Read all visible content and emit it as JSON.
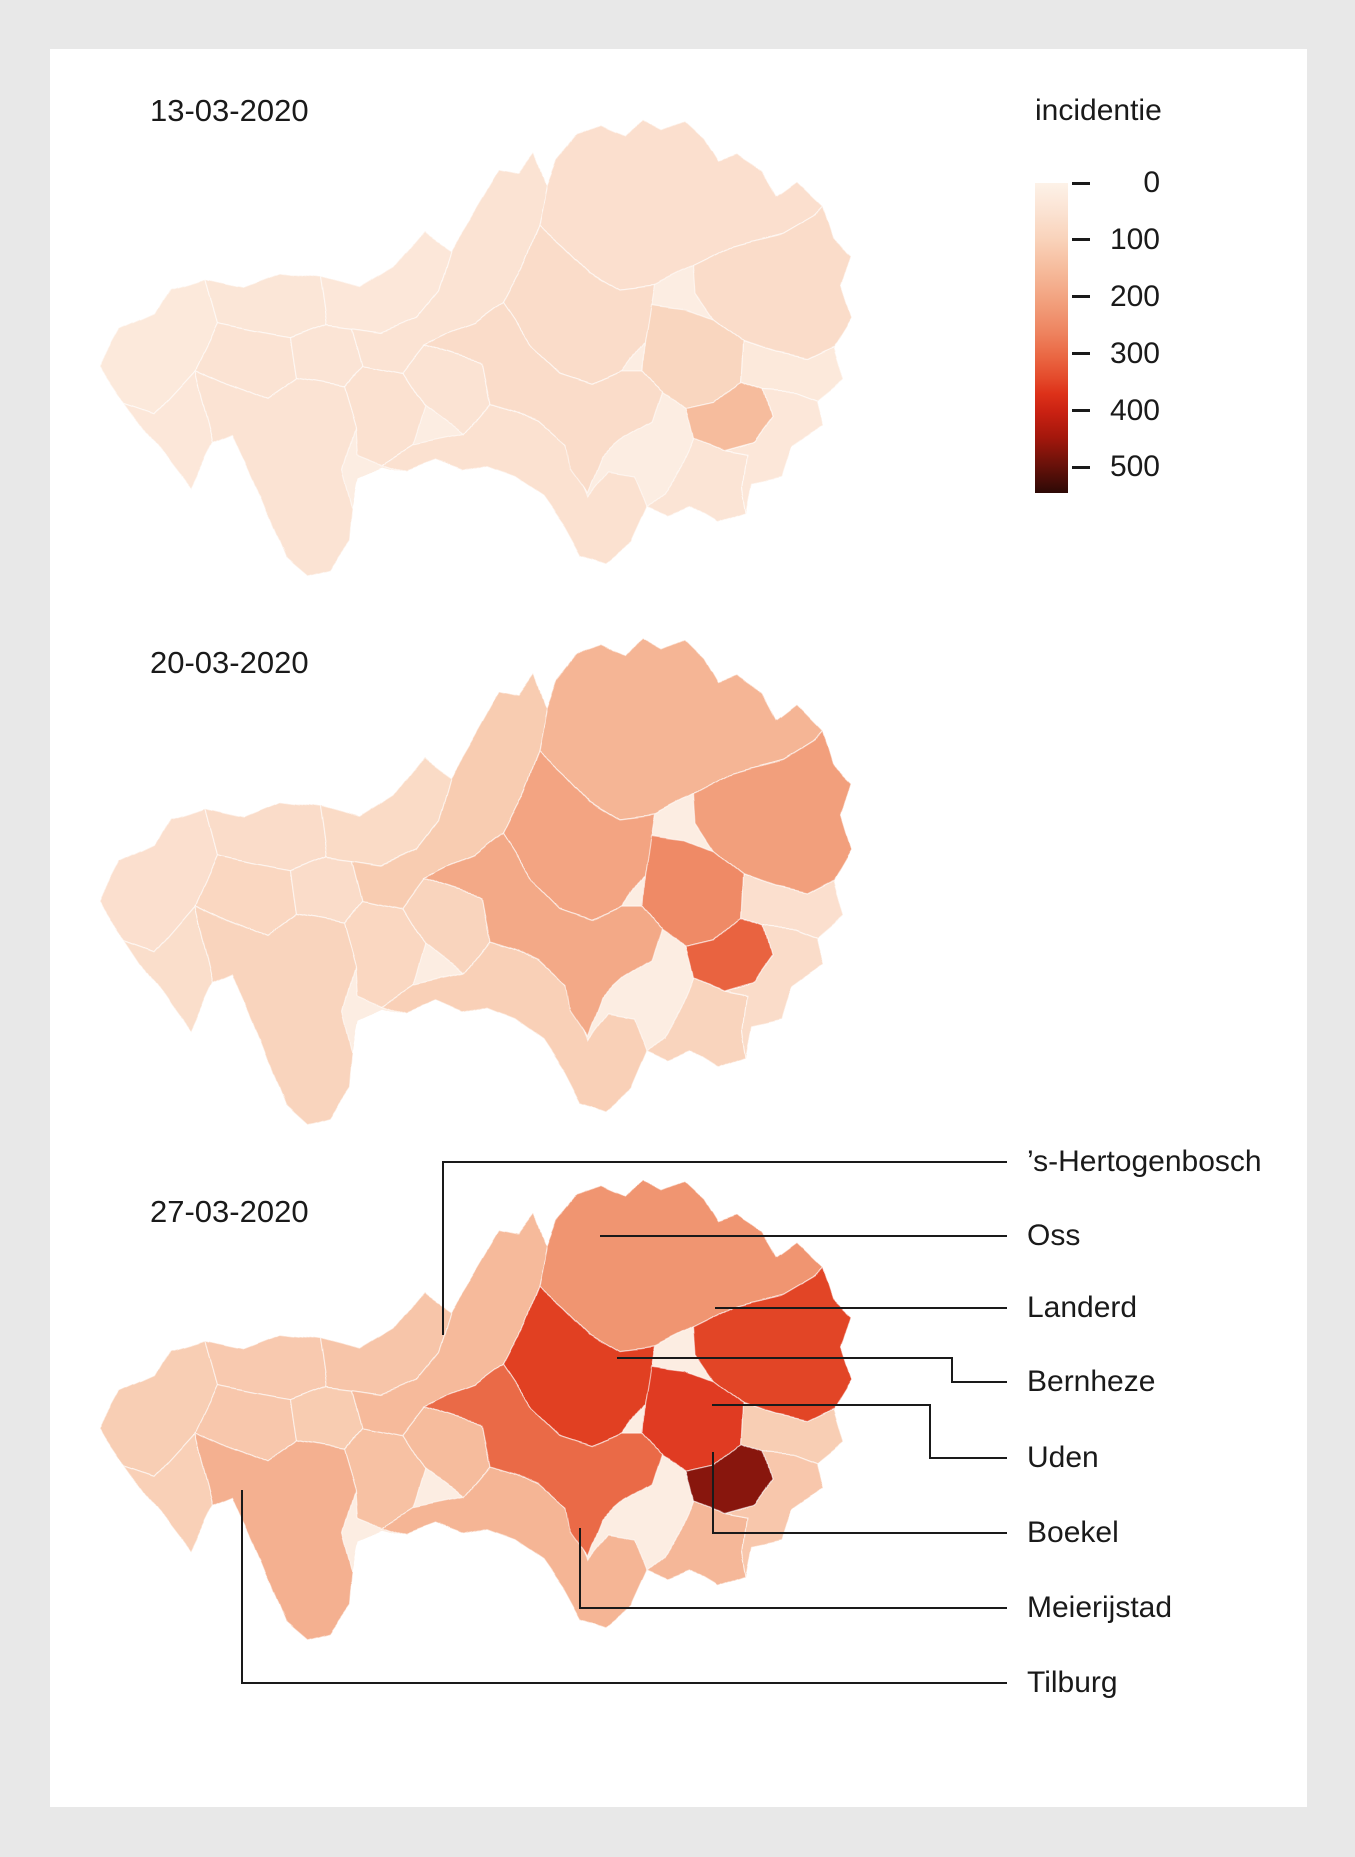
{
  "page": {
    "background_color": "#e8e8e8",
    "panel_color": "#ffffff",
    "text_color": "#1a1a1a"
  },
  "chart_data": {
    "type": "choropleth",
    "subtype": "small-multiples map series",
    "legend_title": "incidentie",
    "dates": [
      "13-03-2020",
      "20-03-2020",
      "27-03-2020"
    ],
    "scale": {
      "min": 0,
      "max": 500,
      "ticks": [
        0,
        100,
        200,
        300,
        400,
        500
      ],
      "bar_bottom_value": 545,
      "gradient_stops": [
        [
          0.0,
          "#fdf2e8"
        ],
        [
          0.09,
          "#fbe3d3"
        ],
        [
          0.18,
          "#f9d3bb"
        ],
        [
          0.28,
          "#f6bb9c"
        ],
        [
          0.38,
          "#f2a17e"
        ],
        [
          0.48,
          "#ee8460"
        ],
        [
          0.56,
          "#ea6743"
        ],
        [
          0.63,
          "#e44a2b"
        ],
        [
          0.68,
          "#dd3119"
        ],
        [
          0.74,
          "#c92112"
        ],
        [
          0.82,
          "#a4170c"
        ],
        [
          0.9,
          "#6f120a"
        ],
        [
          1.0,
          "#2d0906"
        ]
      ]
    },
    "labeled_municipalities": [
      "’s-Hertogenbosch",
      "Oss",
      "Landerd",
      "Bernheze",
      "Uden",
      "Boekel",
      "Meierijstad",
      "Tilburg"
    ],
    "regions": [
      {
        "id": "area-west-tip",
        "label": null,
        "values": [
          30,
          60,
          110
        ]
      },
      {
        "id": "area-nw-1",
        "label": null,
        "values": [
          40,
          70,
          120
        ]
      },
      {
        "id": "area-nw-2",
        "label": null,
        "values": [
          35,
          75,
          130
        ]
      },
      {
        "id": "area-nw-3",
        "label": null,
        "values": [
          50,
          85,
          125
        ]
      },
      {
        "id": "area-center-west",
        "label": null,
        "values": [
          45,
          70,
          115
        ]
      },
      {
        "id": "area-sw",
        "label": null,
        "values": [
          35,
          65,
          105
        ]
      },
      {
        "id": "area-central-1",
        "label": null,
        "values": [
          55,
          85,
          140
        ]
      },
      {
        "id": "area-central-2",
        "label": null,
        "values": [
          50,
          95,
          150
        ]
      },
      {
        "id": "area-south-central",
        "label": null,
        "values": [
          55,
          105,
          165
        ]
      },
      {
        "id": "area-se-lobe",
        "label": null,
        "values": [
          45,
          95,
          160
        ]
      },
      {
        "id": "area-east-1",
        "label": null,
        "values": [
          30,
          60,
          110
        ]
      },
      {
        "id": "area-east-2",
        "label": null,
        "values": [
          35,
          70,
          125
        ]
      },
      {
        "id": "s-hertogenbosch",
        "label": "’s-Hertogenbosch",
        "values": [
          50,
          115,
          155
        ]
      },
      {
        "id": "oss",
        "label": "Oss",
        "values": [
          60,
          165,
          230
        ]
      },
      {
        "id": "landerd",
        "label": "Landerd",
        "values": [
          70,
          210,
          350
        ]
      },
      {
        "id": "bernheze",
        "label": "Bernheze",
        "values": [
          70,
          200,
          355
        ]
      },
      {
        "id": "uden",
        "label": "Uden",
        "values": [
          90,
          250,
          360
        ]
      },
      {
        "id": "meierijstad",
        "label": "Meierijstad",
        "values": [
          70,
          190,
          300
        ]
      },
      {
        "id": "boekel",
        "label": "Boekel",
        "values": [
          150,
          310,
          470
        ]
      },
      {
        "id": "tilburg",
        "label": "Tilburg",
        "values": [
          50,
          95,
          175
        ]
      }
    ]
  }
}
